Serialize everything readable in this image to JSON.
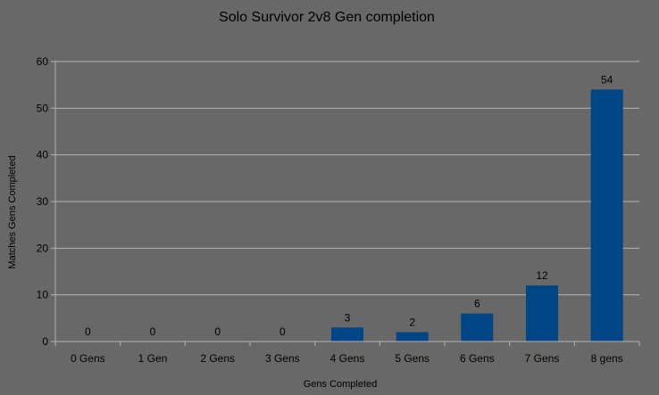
{
  "chart_data": {
    "type": "bar",
    "title": "Solo Survivor 2v8 Gen completion",
    "xlabel": "Gens Completed",
    "ylabel": "Matches Gens Completed",
    "categories": [
      "0 Gens",
      "1 Gen",
      "2 Gens",
      "3 Gens",
      "4 Gens",
      "5 Gens",
      "6 Gens",
      "7 Gens",
      "8 gens"
    ],
    "values": [
      0,
      0,
      0,
      0,
      3,
      2,
      6,
      12,
      54
    ],
    "ylim": [
      0,
      60
    ],
    "yticks": [
      0,
      10,
      20,
      30,
      40,
      50,
      60
    ],
    "grid": true,
    "legend": "none",
    "colors": {
      "background": "#686868",
      "bar": "#004586",
      "gridline": "#b3b3b3",
      "text": "#000000"
    }
  }
}
